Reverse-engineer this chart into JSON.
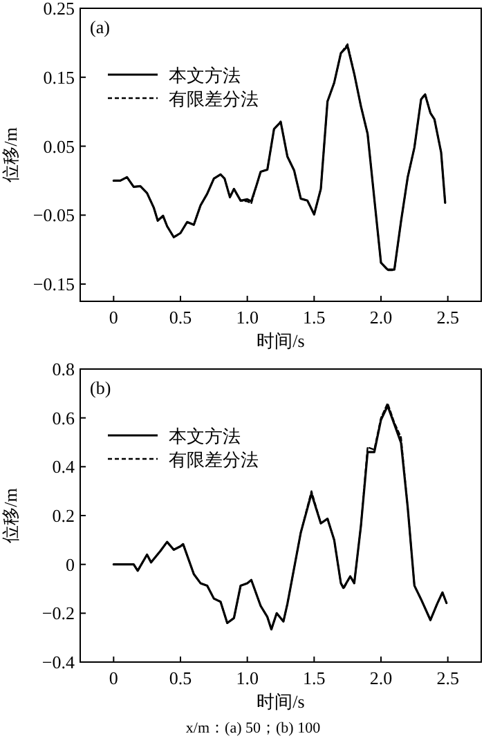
{
  "chart_data": [
    {
      "type": "line",
      "title": "(a)",
      "xlabel": "时间/s",
      "ylabel": "位移/m",
      "legend": "top left",
      "xlim": [
        -0.25,
        2.75
      ],
      "ylim": [
        -0.175,
        0.25
      ],
      "xticks": [
        0,
        {
          "value": 0.5,
          "label": "0.5"
        },
        {
          "value": 1,
          "label": "1.0"
        },
        {
          "value": 1.5,
          "label": "1.5"
        },
        {
          "value": 2,
          "label": "2.0"
        },
        {
          "value": 2.5,
          "label": "2.5"
        }
      ],
      "yticks": [
        {
          "value": -0.15,
          "label": "−0.15"
        },
        {
          "value": -0.05,
          "label": "−0.05"
        },
        0.05,
        0.15,
        0.25
      ],
      "series": [
        {
          "name": "本文方法",
          "color": "#000000",
          "line_style": "solid",
          "x": [
            0,
            0.05,
            0.1,
            0.15,
            0.2,
            0.25,
            0.3,
            0.33,
            0.37,
            0.4,
            0.45,
            0.5,
            0.55,
            0.6,
            0.65,
            0.7,
            0.75,
            0.8,
            0.83,
            0.87,
            0.9,
            0.95,
            1.0,
            1.03,
            1.07,
            1.1,
            1.15,
            1.2,
            1.25,
            1.3,
            1.35,
            1.4,
            1.45,
            1.5,
            1.55,
            1.6,
            1.65,
            1.7,
            1.75,
            1.8,
            1.85,
            1.9,
            1.95,
            2.0,
            2.05,
            2.1,
            2.15,
            2.2,
            2.25,
            2.3,
            2.33,
            2.37,
            2.4,
            2.45,
            2.48
          ],
          "values": [
            0.0,
            0.0,
            0.005,
            -0.009,
            -0.008,
            -0.018,
            -0.039,
            -0.058,
            -0.051,
            -0.066,
            -0.082,
            -0.076,
            -0.06,
            -0.064,
            -0.036,
            -0.019,
            0.003,
            0.009,
            0.003,
            -0.024,
            -0.012,
            -0.029,
            -0.027,
            -0.03,
            -0.006,
            0.013,
            0.016,
            0.075,
            0.085,
            0.035,
            0.015,
            -0.026,
            -0.029,
            -0.049,
            -0.012,
            0.115,
            0.142,
            0.185,
            0.195,
            0.155,
            0.108,
            0.068,
            -0.026,
            -0.119,
            -0.129,
            -0.129,
            -0.059,
            0.005,
            0.048,
            0.118,
            0.125,
            0.098,
            0.089,
            0.041,
            -0.032
          ]
        },
        {
          "name": "有限差分法",
          "color": "#000000",
          "line_style": "dashed",
          "x": [
            0,
            0.05,
            0.1,
            0.15,
            0.2,
            0.25,
            0.3,
            0.33,
            0.37,
            0.4,
            0.45,
            0.5,
            0.55,
            0.6,
            0.65,
            0.7,
            0.75,
            0.8,
            0.83,
            0.87,
            0.9,
            0.95,
            1.0,
            1.03,
            1.07,
            1.1,
            1.15,
            1.2,
            1.25,
            1.3,
            1.35,
            1.4,
            1.45,
            1.5,
            1.55,
            1.6,
            1.65,
            1.7,
            1.75,
            1.8,
            1.85,
            1.9,
            1.95,
            2.0,
            2.05,
            2.1,
            2.15,
            2.2,
            2.25,
            2.3,
            2.33,
            2.37,
            2.4,
            2.45,
            2.48
          ],
          "values": [
            0.0,
            0.0,
            0.005,
            -0.009,
            -0.008,
            -0.018,
            -0.039,
            -0.058,
            -0.051,
            -0.066,
            -0.082,
            -0.076,
            -0.06,
            -0.064,
            -0.036,
            -0.019,
            0.003,
            0.009,
            0.003,
            -0.024,
            -0.012,
            -0.029,
            -0.03,
            -0.033,
            -0.006,
            0.013,
            0.016,
            0.075,
            0.086,
            0.035,
            0.015,
            -0.026,
            -0.029,
            -0.049,
            -0.012,
            0.115,
            0.142,
            0.185,
            0.198,
            0.155,
            0.108,
            0.068,
            -0.026,
            -0.119,
            -0.13,
            -0.13,
            -0.059,
            0.005,
            0.048,
            0.118,
            0.126,
            0.098,
            0.089,
            0.041,
            -0.032
          ]
        }
      ]
    },
    {
      "type": "line",
      "title": "(b)",
      "xlabel": "时间/s",
      "ylabel": "位移/m",
      "legend": "top left",
      "annotations": [
        "x/m：(a) 50；(b) 100"
      ],
      "xlim": [
        -0.25,
        2.75
      ],
      "ylim": [
        -0.4,
        0.8
      ],
      "xticks": [
        0,
        {
          "value": 0.5,
          "label": "0.5"
        },
        {
          "value": 1,
          "label": "1.0"
        },
        {
          "value": 1.5,
          "label": "1.5"
        },
        {
          "value": 2,
          "label": "2.0"
        },
        {
          "value": 2.5,
          "label": "2.5"
        }
      ],
      "yticks": [
        {
          "value": -0.4,
          "label": "−0.4"
        },
        {
          "value": -0.2,
          "label": "−0.2"
        },
        0,
        0.2,
        0.4,
        0.6,
        0.8
      ],
      "series": [
        {
          "name": "本文方法",
          "color": "#000000",
          "line_style": "solid",
          "x": [
            0,
            0.15,
            0.18,
            0.25,
            0.28,
            0.35,
            0.4,
            0.45,
            0.5,
            0.52,
            0.6,
            0.65,
            0.7,
            0.75,
            0.8,
            0.85,
            0.9,
            0.95,
            1.0,
            1.03,
            1.1,
            1.15,
            1.18,
            1.22,
            1.27,
            1.3,
            1.4,
            1.48,
            1.55,
            1.6,
            1.65,
            1.7,
            1.72,
            1.77,
            1.8,
            1.85,
            1.9,
            1.95,
            2.0,
            2.05,
            2.1,
            2.15,
            2.2,
            2.25,
            2.3,
            2.37,
            2.42,
            2.46,
            2.49
          ],
          "values": [
            0,
            0,
            -0.026,
            0.04,
            0.008,
            0.055,
            0.092,
            0.06,
            0.074,
            0.083,
            -0.04,
            -0.077,
            -0.087,
            -0.14,
            -0.153,
            -0.24,
            -0.22,
            -0.087,
            -0.077,
            -0.064,
            -0.17,
            -0.215,
            -0.266,
            -0.2,
            -0.234,
            -0.162,
            0.13,
            0.29,
            0.168,
            0.187,
            0.1,
            -0.077,
            -0.096,
            -0.049,
            -0.077,
            0.158,
            0.46,
            0.46,
            0.592,
            0.649,
            0.574,
            0.498,
            0.234,
            -0.087,
            -0.143,
            -0.228,
            -0.162,
            -0.115,
            -0.158
          ]
        },
        {
          "name": "有限差分法",
          "color": "#000000",
          "line_style": "dashed",
          "x": [
            0,
            0.15,
            0.18,
            0.25,
            0.28,
            0.35,
            0.4,
            0.45,
            0.5,
            0.52,
            0.6,
            0.65,
            0.7,
            0.75,
            0.8,
            0.85,
            0.9,
            0.95,
            1.0,
            1.03,
            1.1,
            1.15,
            1.18,
            1.22,
            1.27,
            1.3,
            1.4,
            1.48,
            1.55,
            1.6,
            1.65,
            1.7,
            1.72,
            1.77,
            1.8,
            1.85,
            1.9,
            1.95,
            2.0,
            2.05,
            2.1,
            2.15,
            2.2,
            2.25,
            2.3,
            2.37,
            2.42,
            2.46,
            2.49
          ],
          "values": [
            0,
            0,
            -0.026,
            0.04,
            0.008,
            0.055,
            0.092,
            0.06,
            0.074,
            0.083,
            -0.04,
            -0.077,
            -0.087,
            -0.14,
            -0.153,
            -0.24,
            -0.22,
            -0.087,
            -0.077,
            -0.064,
            -0.17,
            -0.215,
            -0.266,
            -0.2,
            -0.234,
            -0.162,
            0.13,
            0.3,
            0.168,
            0.187,
            0.1,
            -0.077,
            -0.1,
            -0.049,
            -0.077,
            0.158,
            0.48,
            0.47,
            0.6,
            0.66,
            0.58,
            0.52,
            0.234,
            -0.087,
            -0.143,
            -0.228,
            -0.162,
            -0.115,
            -0.158
          ]
        }
      ]
    }
  ]
}
